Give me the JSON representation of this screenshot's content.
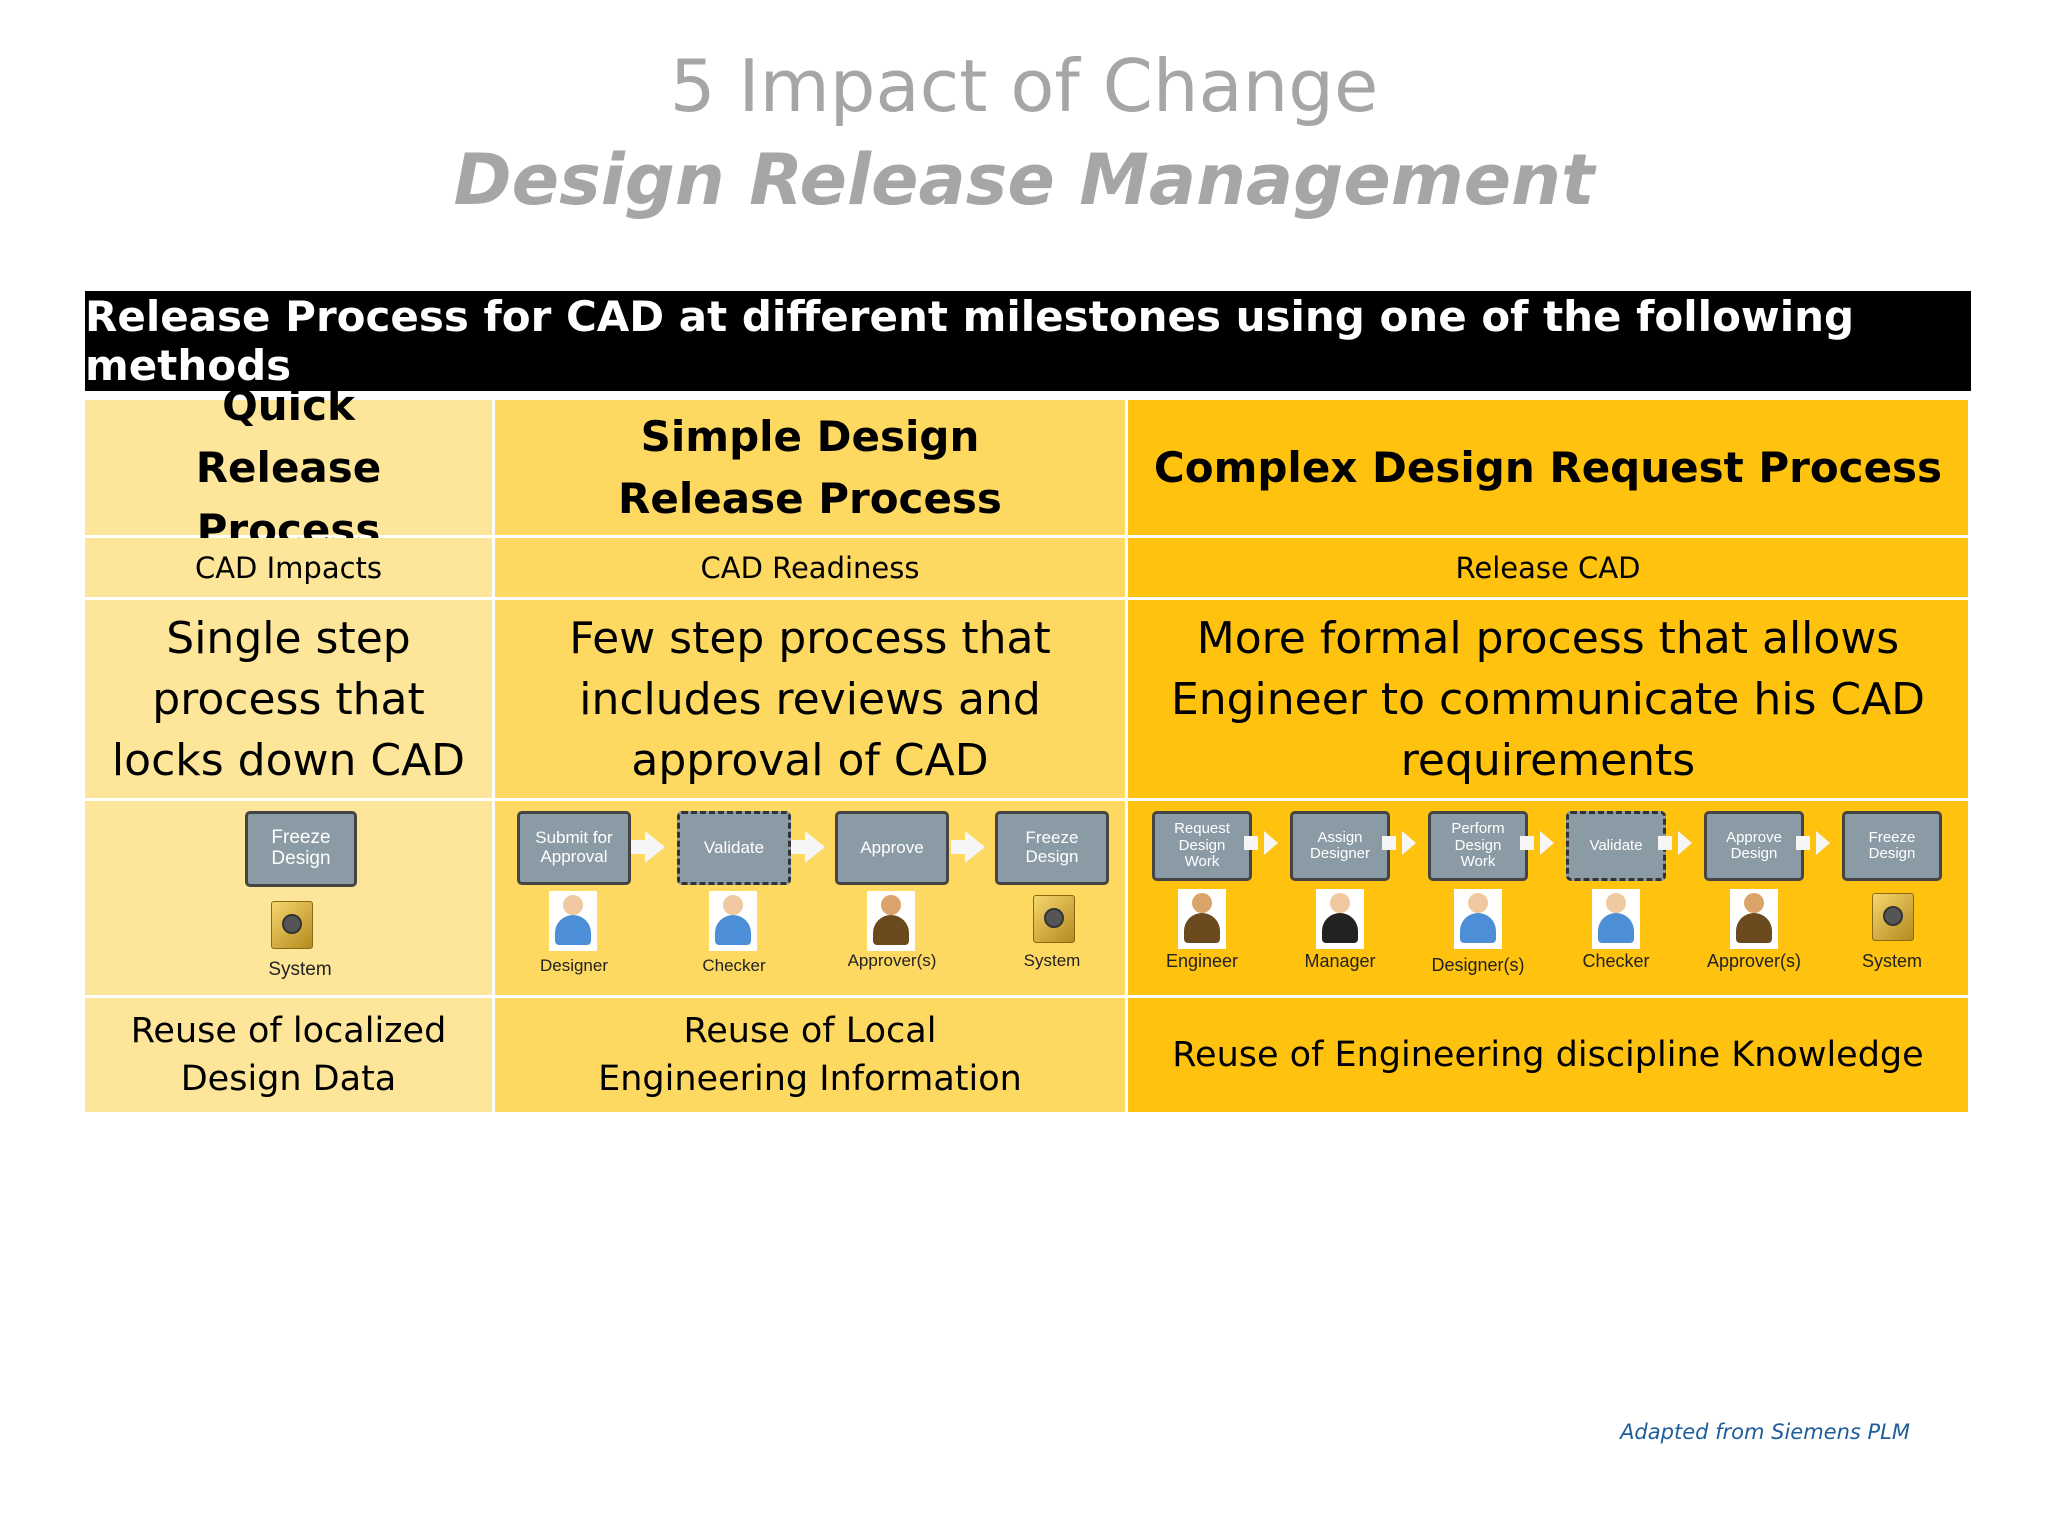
{
  "title": "5 Impact of Change",
  "subtitle": "Design Release Management",
  "banner": "Release Process for CAD at different milestones using one of the following methods",
  "columns": [
    {
      "heading": "Quick Release Process",
      "milestone": "CAD Impacts",
      "description": "Single step process that locks down CAD",
      "steps": [
        {
          "label": "Freeze Design",
          "role": "System",
          "icon": "safe-icon"
        }
      ],
      "reuse": "Reuse of localized Design Data"
    },
    {
      "heading": "Simple Design Release Process",
      "milestone": "CAD Readiness",
      "description": "Few step process that includes reviews and approval of CAD",
      "steps": [
        {
          "label": "Submit for Approval",
          "role": "Designer",
          "icon": "person-icon"
        },
        {
          "label": "Validate",
          "role": "Checker",
          "icon": "person-icon"
        },
        {
          "label": "Approve",
          "role": "Approver(s)",
          "icon": "person-icon"
        },
        {
          "label": "Freeze Design",
          "role": "System",
          "icon": "safe-icon"
        }
      ],
      "reuse": "Reuse of Local Engineering Information"
    },
    {
      "heading": "Complex Design Request Process",
      "milestone": "Release CAD",
      "description": "More formal process that allows Engineer to communicate his CAD requirements",
      "steps": [
        {
          "label": "Request Design Work",
          "role": "Engineer",
          "icon": "person-icon"
        },
        {
          "label": "Assign Designer",
          "role": "Manager",
          "icon": "person-icon"
        },
        {
          "label": "Perform Design Work",
          "role": "Designer(s)",
          "icon": "person-icon"
        },
        {
          "label": "Validate",
          "role": "Checker",
          "icon": "person-icon"
        },
        {
          "label": "Approve Design",
          "role": "Approver(s)",
          "icon": "person-icon"
        },
        {
          "label": "Freeze Design",
          "role": "System",
          "icon": "safe-icon"
        }
      ],
      "reuse": "Reuse of Engineering discipline Knowledge"
    }
  ],
  "credit": "Adapted from Siemens PLM",
  "colors": {
    "col1": "#fde699",
    "col2": "#fed961",
    "col3": "#ffc20e",
    "step_box": "#8a9ba5",
    "credit": "#1f5d9a"
  }
}
